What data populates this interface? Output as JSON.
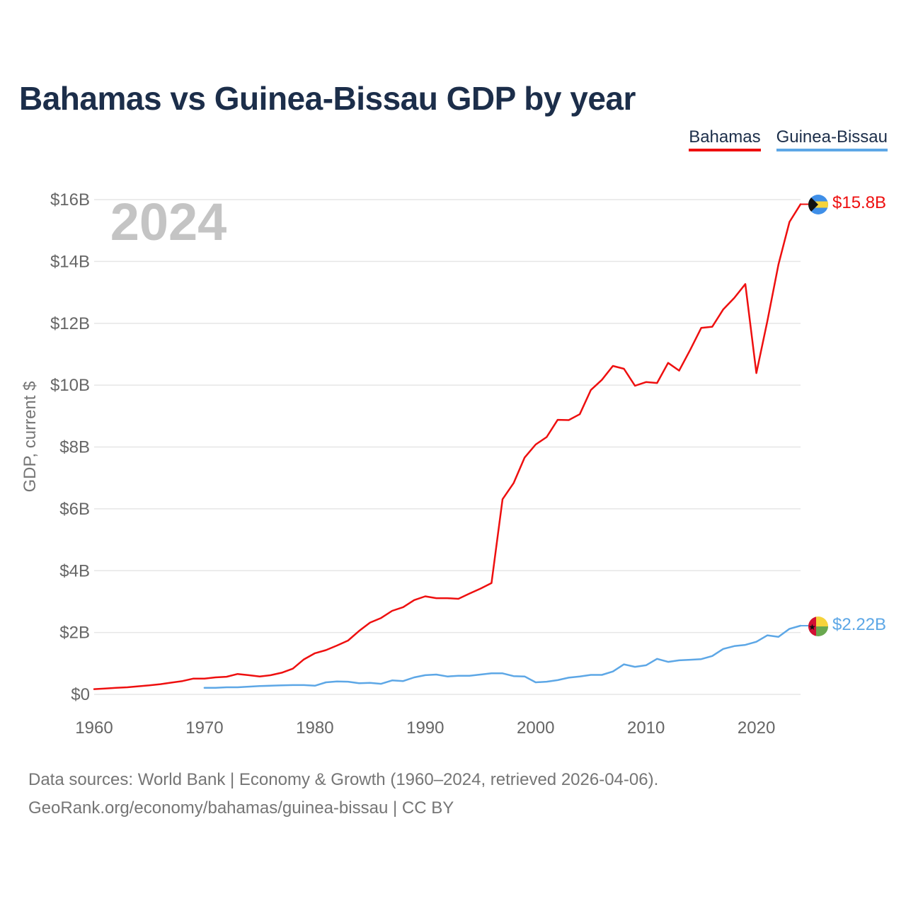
{
  "title": "Bahamas vs Guinea-Bissau GDP by year",
  "legend": {
    "bahamas": "Bahamas",
    "guinea_bissau": "Guinea-Bissau"
  },
  "source": {
    "line1": "Data sources: World Bank | Economy & Growth (1960–2024, retrieved 2026-04-06).",
    "line2": "GeoRank.org/economy/bahamas/guinea-bissau | CC BY"
  },
  "chart_data": {
    "type": "line",
    "title": "Bahamas vs Guinea-Bissau GDP by year",
    "ylabel": "GDP, current $",
    "xlabel": "",
    "watermark_year": "2024",
    "xlim": [
      1960,
      2024
    ],
    "ylim": [
      0,
      16
    ],
    "y_unit": "billions USD",
    "x_ticks": [
      1960,
      1970,
      1980,
      1990,
      2000,
      2010,
      2020
    ],
    "y_ticks": [
      0,
      2,
      4,
      6,
      8,
      10,
      12,
      14,
      16
    ],
    "y_tick_labels": [
      "$0",
      "$2B",
      "$4B",
      "$6B",
      "$8B",
      "$10B",
      "$12B",
      "$14B",
      "$16B"
    ],
    "grid": true,
    "legend_position": "top-right",
    "colors": {
      "bahamas": "#ee0f0f",
      "guinea_bissau": "#5da7e6"
    },
    "series": [
      {
        "key": "bahamas",
        "name": "Bahamas",
        "end_label": "$15.8B",
        "flag_icon": "bahamas-flag-icon",
        "x": [
          1960,
          1961,
          1962,
          1963,
          1964,
          1965,
          1966,
          1967,
          1968,
          1969,
          1970,
          1971,
          1972,
          1973,
          1974,
          1975,
          1976,
          1977,
          1978,
          1979,
          1980,
          1981,
          1982,
          1983,
          1984,
          1985,
          1986,
          1987,
          1988,
          1989,
          1990,
          1991,
          1992,
          1993,
          1994,
          1995,
          1996,
          1997,
          1998,
          1999,
          2000,
          2001,
          2002,
          2003,
          2004,
          2005,
          2006,
          2007,
          2008,
          2009,
          2010,
          2011,
          2012,
          2013,
          2014,
          2015,
          2016,
          2017,
          2018,
          2019,
          2020,
          2021,
          2022,
          2023,
          2024
        ],
        "values": [
          0.17,
          0.19,
          0.21,
          0.23,
          0.26,
          0.29,
          0.33,
          0.38,
          0.43,
          0.51,
          0.51,
          0.55,
          0.57,
          0.66,
          0.62,
          0.58,
          0.62,
          0.7,
          0.83,
          1.13,
          1.33,
          1.43,
          1.58,
          1.74,
          2.05,
          2.32,
          2.47,
          2.7,
          2.82,
          3.05,
          3.17,
          3.11,
          3.11,
          3.09,
          3.26,
          3.42,
          3.6,
          6.31,
          6.83,
          7.66,
          8.08,
          8.32,
          8.88,
          8.87,
          9.06,
          9.84,
          10.17,
          10.62,
          10.53,
          9.98,
          10.1,
          10.07,
          10.72,
          10.47,
          11.14,
          11.85,
          11.89,
          12.45,
          12.82,
          13.27,
          10.39,
          12.08,
          13.9,
          15.28,
          15.85
        ]
      },
      {
        "key": "guinea_bissau",
        "name": "Guinea-Bissau",
        "end_label": "$2.22B",
        "flag_icon": "guinea-bissau-flag-icon",
        "x": [
          1970,
          1971,
          1972,
          1973,
          1974,
          1975,
          1976,
          1977,
          1978,
          1979,
          1980,
          1981,
          1982,
          1983,
          1984,
          1985,
          1986,
          1987,
          1988,
          1989,
          1990,
          1991,
          1992,
          1993,
          1994,
          1995,
          1996,
          1997,
          1998,
          1999,
          2000,
          2001,
          2002,
          2003,
          2004,
          2005,
          2006,
          2007,
          2008,
          2009,
          2010,
          2011,
          2012,
          2013,
          2014,
          2015,
          2016,
          2017,
          2018,
          2019,
          2020,
          2021,
          2022,
          2023,
          2024
        ],
        "values": [
          0.21,
          0.21,
          0.23,
          0.23,
          0.25,
          0.27,
          0.28,
          0.29,
          0.3,
          0.3,
          0.28,
          0.39,
          0.42,
          0.41,
          0.36,
          0.37,
          0.34,
          0.45,
          0.43,
          0.55,
          0.62,
          0.64,
          0.58,
          0.6,
          0.6,
          0.64,
          0.68,
          0.68,
          0.59,
          0.58,
          0.39,
          0.41,
          0.46,
          0.54,
          0.58,
          0.63,
          0.63,
          0.74,
          0.97,
          0.89,
          0.94,
          1.15,
          1.05,
          1.1,
          1.12,
          1.14,
          1.24,
          1.47,
          1.56,
          1.6,
          1.7,
          1.91,
          1.86,
          2.12,
          2.22
        ]
      }
    ]
  }
}
